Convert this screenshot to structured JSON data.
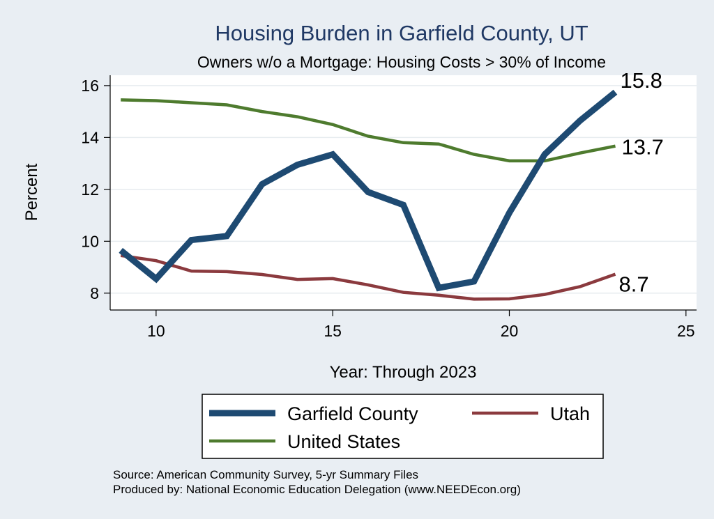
{
  "chart_data": {
    "type": "line",
    "title": "Housing Burden in Garfield County, UT",
    "subtitle": "Owners w/o a Mortgage: Housing Costs > 30% of Income",
    "xlabel": "Year: Through 2023",
    "ylabel": "Percent",
    "xlim": [
      8.7,
      25.3
    ],
    "ylim": [
      7.35,
      16.4
    ],
    "xticks": [
      10,
      15,
      20,
      25
    ],
    "yticks": [
      8,
      10,
      12,
      14,
      16
    ],
    "grid": true,
    "legend_position": "bottom",
    "x": [
      9,
      10,
      11,
      12,
      13,
      14,
      15,
      16,
      17,
      18,
      19,
      20,
      21,
      22,
      23
    ],
    "series": [
      {
        "name": "Garfield County",
        "color": "#1e4a72",
        "values": [
          9.65,
          8.55,
          10.05,
          10.2,
          12.2,
          12.95,
          13.35,
          11.9,
          11.4,
          8.2,
          8.45,
          11.1,
          13.35,
          14.65,
          15.75
        ],
        "end_label": "15.8"
      },
      {
        "name": "Utah",
        "color": "#8b3a3e",
        "values": [
          9.45,
          9.25,
          8.85,
          8.83,
          8.72,
          8.53,
          8.56,
          8.32,
          8.03,
          7.92,
          7.77,
          7.78,
          7.95,
          8.25,
          8.73
        ],
        "end_label": "8.7"
      },
      {
        "name": "United States",
        "color": "#4e7b2e",
        "values": [
          15.45,
          15.42,
          15.34,
          15.26,
          15.0,
          14.8,
          14.5,
          14.05,
          13.8,
          13.75,
          13.35,
          13.1,
          13.1,
          13.4,
          13.67
        ],
        "end_label": "13.7"
      }
    ]
  },
  "notes": {
    "source": "Source: American Community Survey, 5-yr Summary Files",
    "produced": "Produced by: National Economic Education Delegation (www.NEEDEcon.org)"
  }
}
